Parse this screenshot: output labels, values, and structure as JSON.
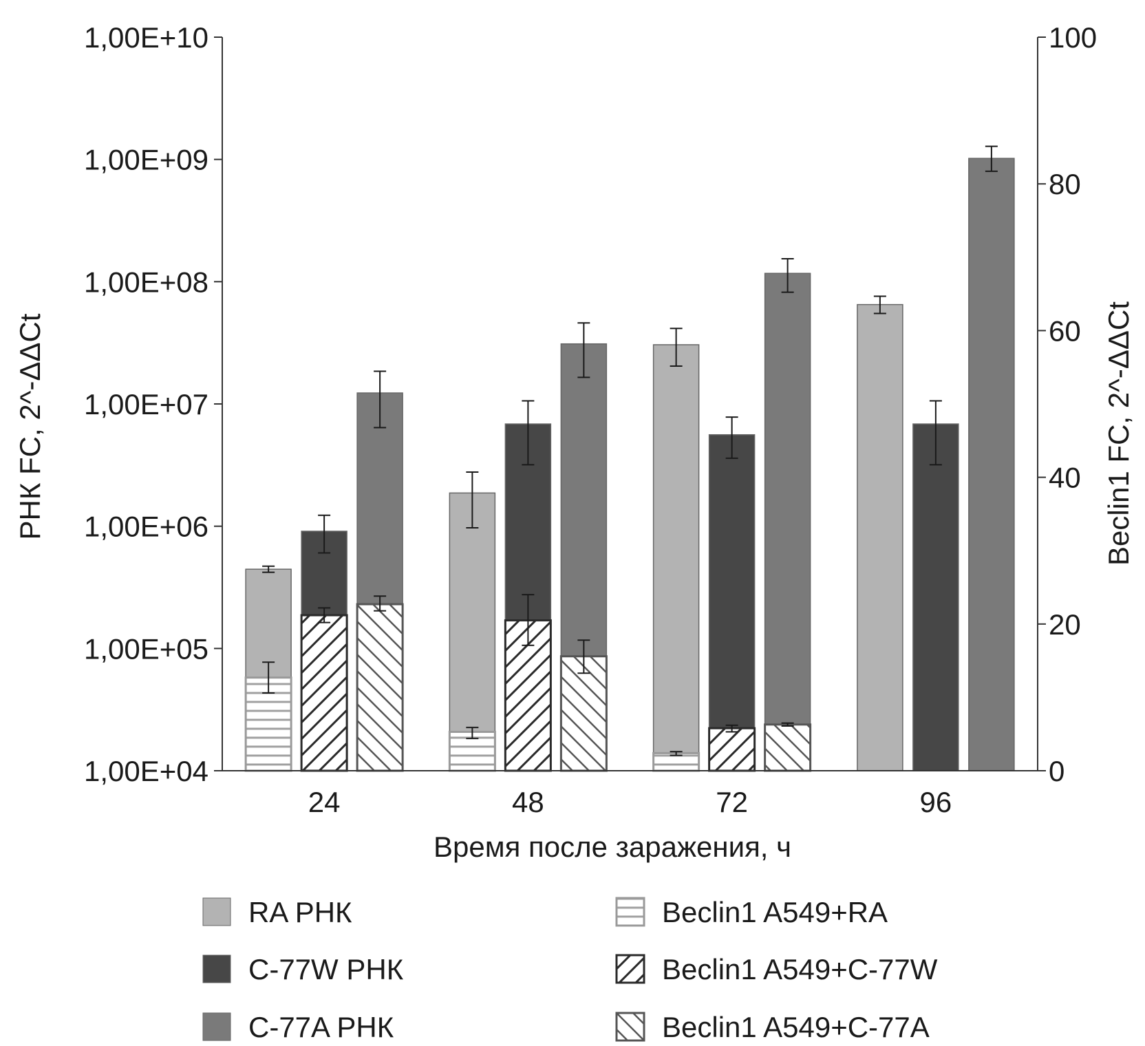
{
  "chart_data": {
    "type": "bar",
    "categories": [
      "24",
      "48",
      "72",
      "96"
    ],
    "xlabel": "Время после заражения, ч",
    "ylabel_left": "РНК  FC, 2^-ΔΔCt",
    "ylabel_right": "Beclin1  FC, 2^-ΔΔCt",
    "left_axis": {
      "scale": "log",
      "ylim": [
        10000,
        10000000000
      ],
      "ticks": [
        10000,
        100000,
        1000000,
        10000000,
        100000000,
        1000000000,
        10000000000
      ],
      "tick_labels": [
        "1,00E+04",
        "1,00E+05",
        "1,00E+06",
        "1,00E+07",
        "1,00E+08",
        "1,00E+09",
        "1,00E+10"
      ]
    },
    "right_axis": {
      "scale": "linear",
      "ylim": [
        0,
        100
      ],
      "ticks": [
        0,
        20,
        40,
        60,
        80,
        100
      ],
      "tick_labels": [
        "0",
        "20",
        "40",
        "60",
        "80",
        "100"
      ]
    },
    "grid": false,
    "legend_placement": "bottom",
    "series": [
      {
        "name": "RA РНК",
        "axis": "left",
        "color": "#b3b3b3",
        "pattern": "solid",
        "values": [
          445000,
          1870000,
          30500000,
          65000000
        ],
        "errors": [
          [
            420000,
            471000
          ],
          [
            970000,
            2770000
          ],
          [
            20400000,
            41500000
          ],
          [
            55000000,
            76000000
          ]
        ]
      },
      {
        "name": "C-77W РНК",
        "axis": "left",
        "color": "#474747",
        "pattern": "solid",
        "values": [
          910000,
          6860000,
          5600000,
          6860000
        ],
        "errors": [
          [
            605000,
            1230000
          ],
          [
            3180000,
            10600000
          ],
          [
            3600000,
            7800000
          ],
          [
            3180000,
            10600000
          ]
        ]
      },
      {
        "name": "C-77A РНК",
        "axis": "left",
        "color": "#7a7a7a",
        "pattern": "solid",
        "values": [
          12300000,
          31000000,
          117000000,
          1020000000
        ],
        "errors": [
          [
            6400000,
            18500000
          ],
          [
            16500000,
            46000000
          ],
          [
            82000000,
            154000000
          ],
          [
            800000000,
            1280000000
          ]
        ]
      },
      {
        "name": "Beclin1  A549+RA",
        "axis": "right",
        "color": "#9a9a9a",
        "pattern": "horizontal",
        "values": [
          12.7,
          5.3,
          2.4,
          null
        ],
        "errors": [
          [
            10.6,
            14.8
          ],
          [
            4.4,
            5.9
          ],
          [
            2.1,
            2.6
          ],
          null
        ]
      },
      {
        "name": "Beclin1  A549+C-77W",
        "axis": "right",
        "color": "#2a2a2a",
        "pattern": "forward-diagonal",
        "values": [
          21.2,
          20.5,
          5.8,
          null
        ],
        "errors": [
          [
            20.2,
            22.2
          ],
          [
            17.1,
            24.0
          ],
          [
            5.3,
            6.2
          ],
          null
        ]
      },
      {
        "name": "Beclin1  A549+C-77A",
        "axis": "right",
        "color": "#555555",
        "pattern": "back-diagonal",
        "values": [
          22.7,
          15.6,
          6.3,
          null
        ],
        "errors": [
          [
            21.8,
            23.8
          ],
          [
            13.3,
            17.8
          ],
          [
            6.1,
            6.5
          ],
          null
        ]
      }
    ]
  }
}
